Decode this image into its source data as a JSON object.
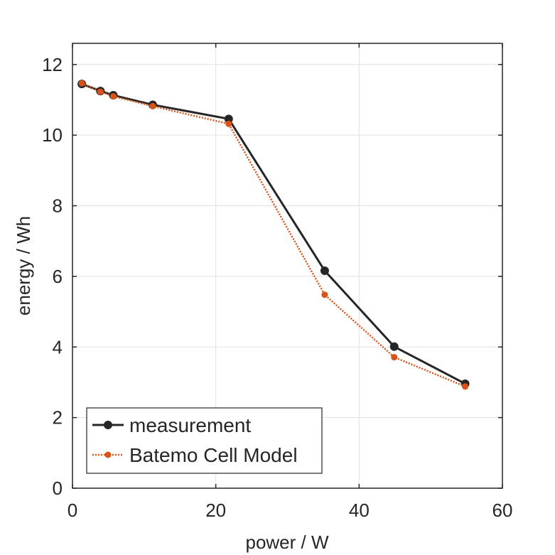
{
  "chart_data": {
    "type": "line",
    "title": "",
    "xlabel": "power / W",
    "ylabel": "energy / Wh",
    "xlim": [
      0,
      60
    ],
    "ylim": [
      0,
      12.6
    ],
    "xticks": [
      0,
      20,
      40,
      60
    ],
    "yticks": [
      0,
      2,
      4,
      6,
      8,
      10,
      12
    ],
    "grid": true,
    "legend_position": "bottom-left",
    "series": [
      {
        "name": "measurement",
        "color": "#262626",
        "line_style": "solid",
        "marker": "circle",
        "x": [
          1.3,
          3.9,
          5.7,
          11.2,
          21.8,
          35.2,
          44.9,
          54.8
        ],
        "y": [
          11.45,
          11.25,
          11.13,
          10.86,
          10.46,
          6.16,
          4.01,
          2.96
        ]
      },
      {
        "name": "Batemo Cell Model",
        "color": "#D95319",
        "line_style": "dotted",
        "marker": "circle",
        "x": [
          1.3,
          3.9,
          5.7,
          11.2,
          21.8,
          35.2,
          44.9,
          54.8
        ],
        "y": [
          11.47,
          11.23,
          11.1,
          10.82,
          10.32,
          5.48,
          3.71,
          2.88
        ]
      }
    ]
  }
}
